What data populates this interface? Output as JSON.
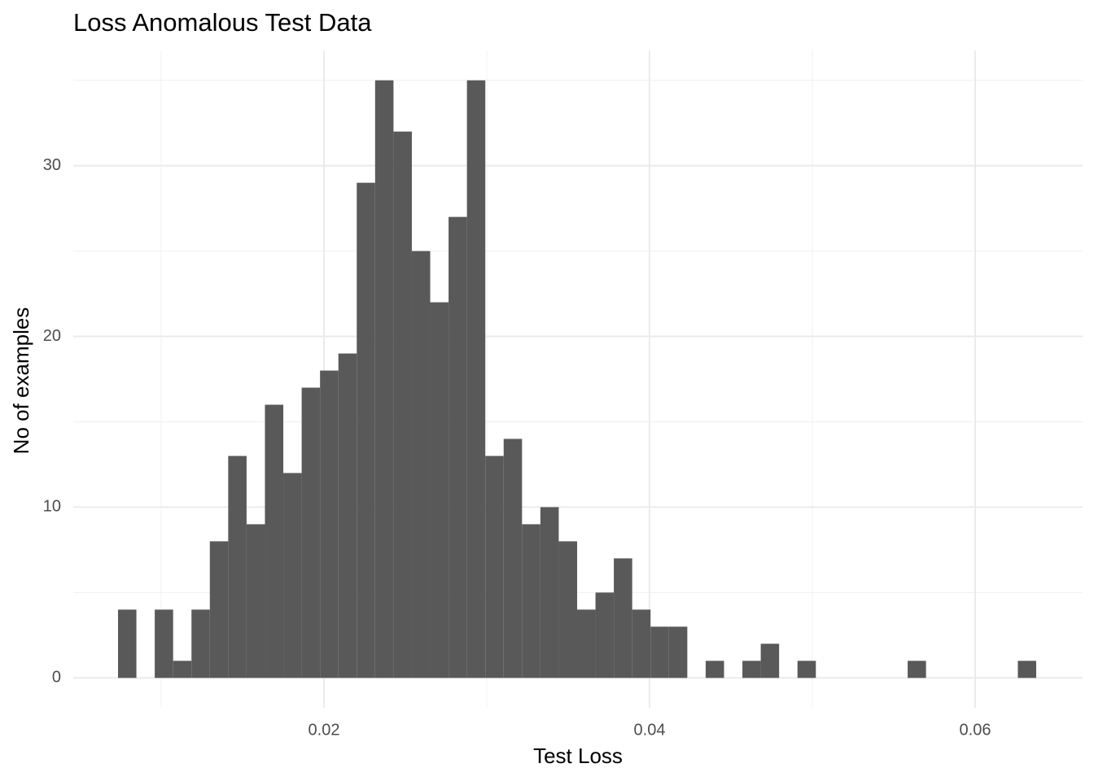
{
  "chart_data": {
    "type": "histogram",
    "title": "Loss Anomalous Test Data",
    "x_label": "Test Loss",
    "y_label": "No of examples",
    "bins": [
      0.00735,
      0.008478,
      0.009606,
      0.010734,
      0.011862,
      0.01299,
      0.014118,
      0.015246,
      0.016374,
      0.017502,
      0.01863,
      0.019758,
      0.020886,
      0.022014,
      0.023142,
      0.02427,
      0.025398,
      0.026526,
      0.027654,
      0.028782,
      0.02991,
      0.031038,
      0.032166,
      0.033294,
      0.034422,
      0.03555,
      0.036678,
      0.037806,
      0.038934,
      0.040062,
      0.04119,
      0.042318,
      0.043446,
      0.044574,
      0.045702,
      0.04683,
      0.047958,
      0.049086,
      0.050214,
      0.051342,
      0.05247,
      0.053598,
      0.054726,
      0.055854,
      0.056982,
      0.05811,
      0.059238,
      0.060366,
      0.061494,
      0.062622,
      0.06375
    ],
    "values": [
      4,
      0,
      4,
      1,
      4,
      8,
      13,
      9,
      16,
      12,
      17,
      18,
      19,
      29,
      35,
      32,
      25,
      22,
      27,
      35,
      13,
      14,
      9,
      10,
      8,
      4,
      5,
      7,
      4,
      3,
      3,
      0,
      1,
      0,
      1,
      2,
      0,
      1,
      0,
      0,
      0,
      0,
      0,
      1,
      0,
      0,
      0,
      0,
      0,
      1
    ],
    "color": "#595959",
    "xlim": [
      0.0046,
      0.0666
    ],
    "ylim": [
      -1.75,
      36.75
    ],
    "xticks": [
      0.02,
      0.04,
      0.06
    ],
    "yticks": [
      0,
      10,
      20,
      30
    ],
    "x_minor_grid": [
      0.01,
      0.03,
      0.05
    ],
    "y_minor_grid": [
      5,
      15,
      25,
      35
    ],
    "grid": true
  }
}
